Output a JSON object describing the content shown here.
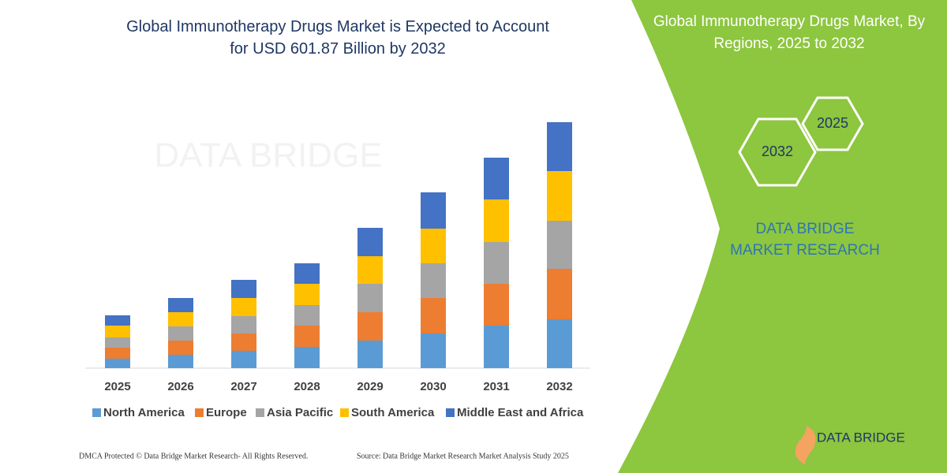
{
  "chart_data": {
    "type": "stacked-bar",
    "title": "Global Immunotherapy Drugs Market is Expected to Account for USD 601.87 Billion by 2032",
    "categories": [
      "2025",
      "2026",
      "2027",
      "2028",
      "2029",
      "2030",
      "2031",
      "2032"
    ],
    "series": [
      {
        "name": "North America",
        "color": "#5b9bd5",
        "values": [
          12,
          17,
          22,
          27,
          35,
          44,
          54,
          62
        ]
      },
      {
        "name": "Europe",
        "color": "#ed7d31",
        "values": [
          14,
          18,
          22,
          27,
          36,
          45,
          53,
          64
        ]
      },
      {
        "name": "Asia Pacific",
        "color": "#a5a5a5",
        "values": [
          13,
          18,
          22,
          26,
          36,
          44,
          53,
          61
        ]
      },
      {
        "name": "South America",
        "color": "#ffc000",
        "values": [
          15,
          18,
          23,
          27,
          35,
          44,
          54,
          63
        ]
      },
      {
        "name": "Middle East and Africa",
        "color": "#4472c4",
        "values": [
          13,
          18,
          23,
          26,
          36,
          46,
          53,
          62
        ]
      }
    ],
    "legend": "bottom"
  },
  "watermark": "DATA BRIDGE",
  "panel": {
    "title": "Global Immunotherapy Drugs Market, By Regions, 2025 to 2032",
    "hexagons": [
      "2032",
      "2025"
    ],
    "brand": "DATA BRIDGE MARKET RESEARCH",
    "logo": "DATA BRIDGE"
  },
  "footer": {
    "left": "DMCA Protected © Data Bridge Market Research- All Rights Reserved.",
    "right": "Source: Data Bridge Market Research Market Analysis Study 2025"
  }
}
